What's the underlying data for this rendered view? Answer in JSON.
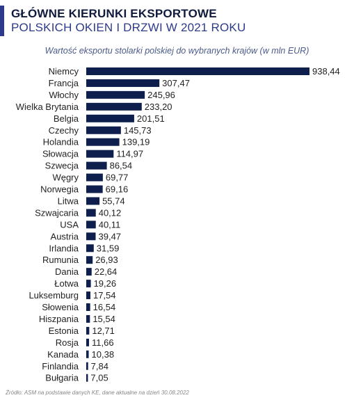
{
  "header": {
    "title_line1": "GŁÓWNE KIERUNKI EKSPORTOWE",
    "title_line2": "POLSKICH OKIEN I DRZWI W 2021 ROKU"
  },
  "footer": {
    "source": "Źródło: ASM na podstawie danych KE, dane aktualne na dzień 30.08.2022"
  },
  "colors": {
    "bar": "#0f1f4d",
    "accent": "#2d3a8c"
  },
  "chart_data": {
    "type": "bar",
    "orientation": "horizontal",
    "subtitle": "Wartość eksportu stolarki polskiej do wybranych krajów (w mln EUR)",
    "categories": [
      "Niemcy",
      "Francja",
      "Włochy",
      "Wielka Brytania",
      "Belgia",
      "Czechy",
      "Holandia",
      "Słowacja",
      "Szwecja",
      "Węgry",
      "Norwegia",
      "Litwa",
      "Szwajcaria",
      "USA",
      "Austria",
      "Irlandia",
      "Rumunia",
      "Dania",
      "Łotwa",
      "Luksemburg",
      "Słowenia",
      "Hiszpania",
      "Estonia",
      "Rosja",
      "Kanada",
      "Finlandia",
      "Bułgaria"
    ],
    "values": [
      938.44,
      307.47,
      245.96,
      233.2,
      201.51,
      145.73,
      139.19,
      114.97,
      86.54,
      69.77,
      69.16,
      55.74,
      40.12,
      40.11,
      39.47,
      31.59,
      26.93,
      22.64,
      19.26,
      17.54,
      16.54,
      15.54,
      12.71,
      11.66,
      10.38,
      7.84,
      7.05
    ],
    "value_labels": [
      "938,44",
      "307,47",
      "245,96",
      "233,20",
      "201,51",
      "145,73",
      "139,19",
      "114,97",
      "86,54",
      "69,77",
      "69,16",
      "55,74",
      "40,12",
      "40,11",
      "39,47",
      "31,59",
      "26,93",
      "22,64",
      "19,26",
      "17,54",
      "16,54",
      "15,54",
      "12,71",
      "11,66",
      "10,38",
      "7,84",
      "7,05"
    ]
  }
}
